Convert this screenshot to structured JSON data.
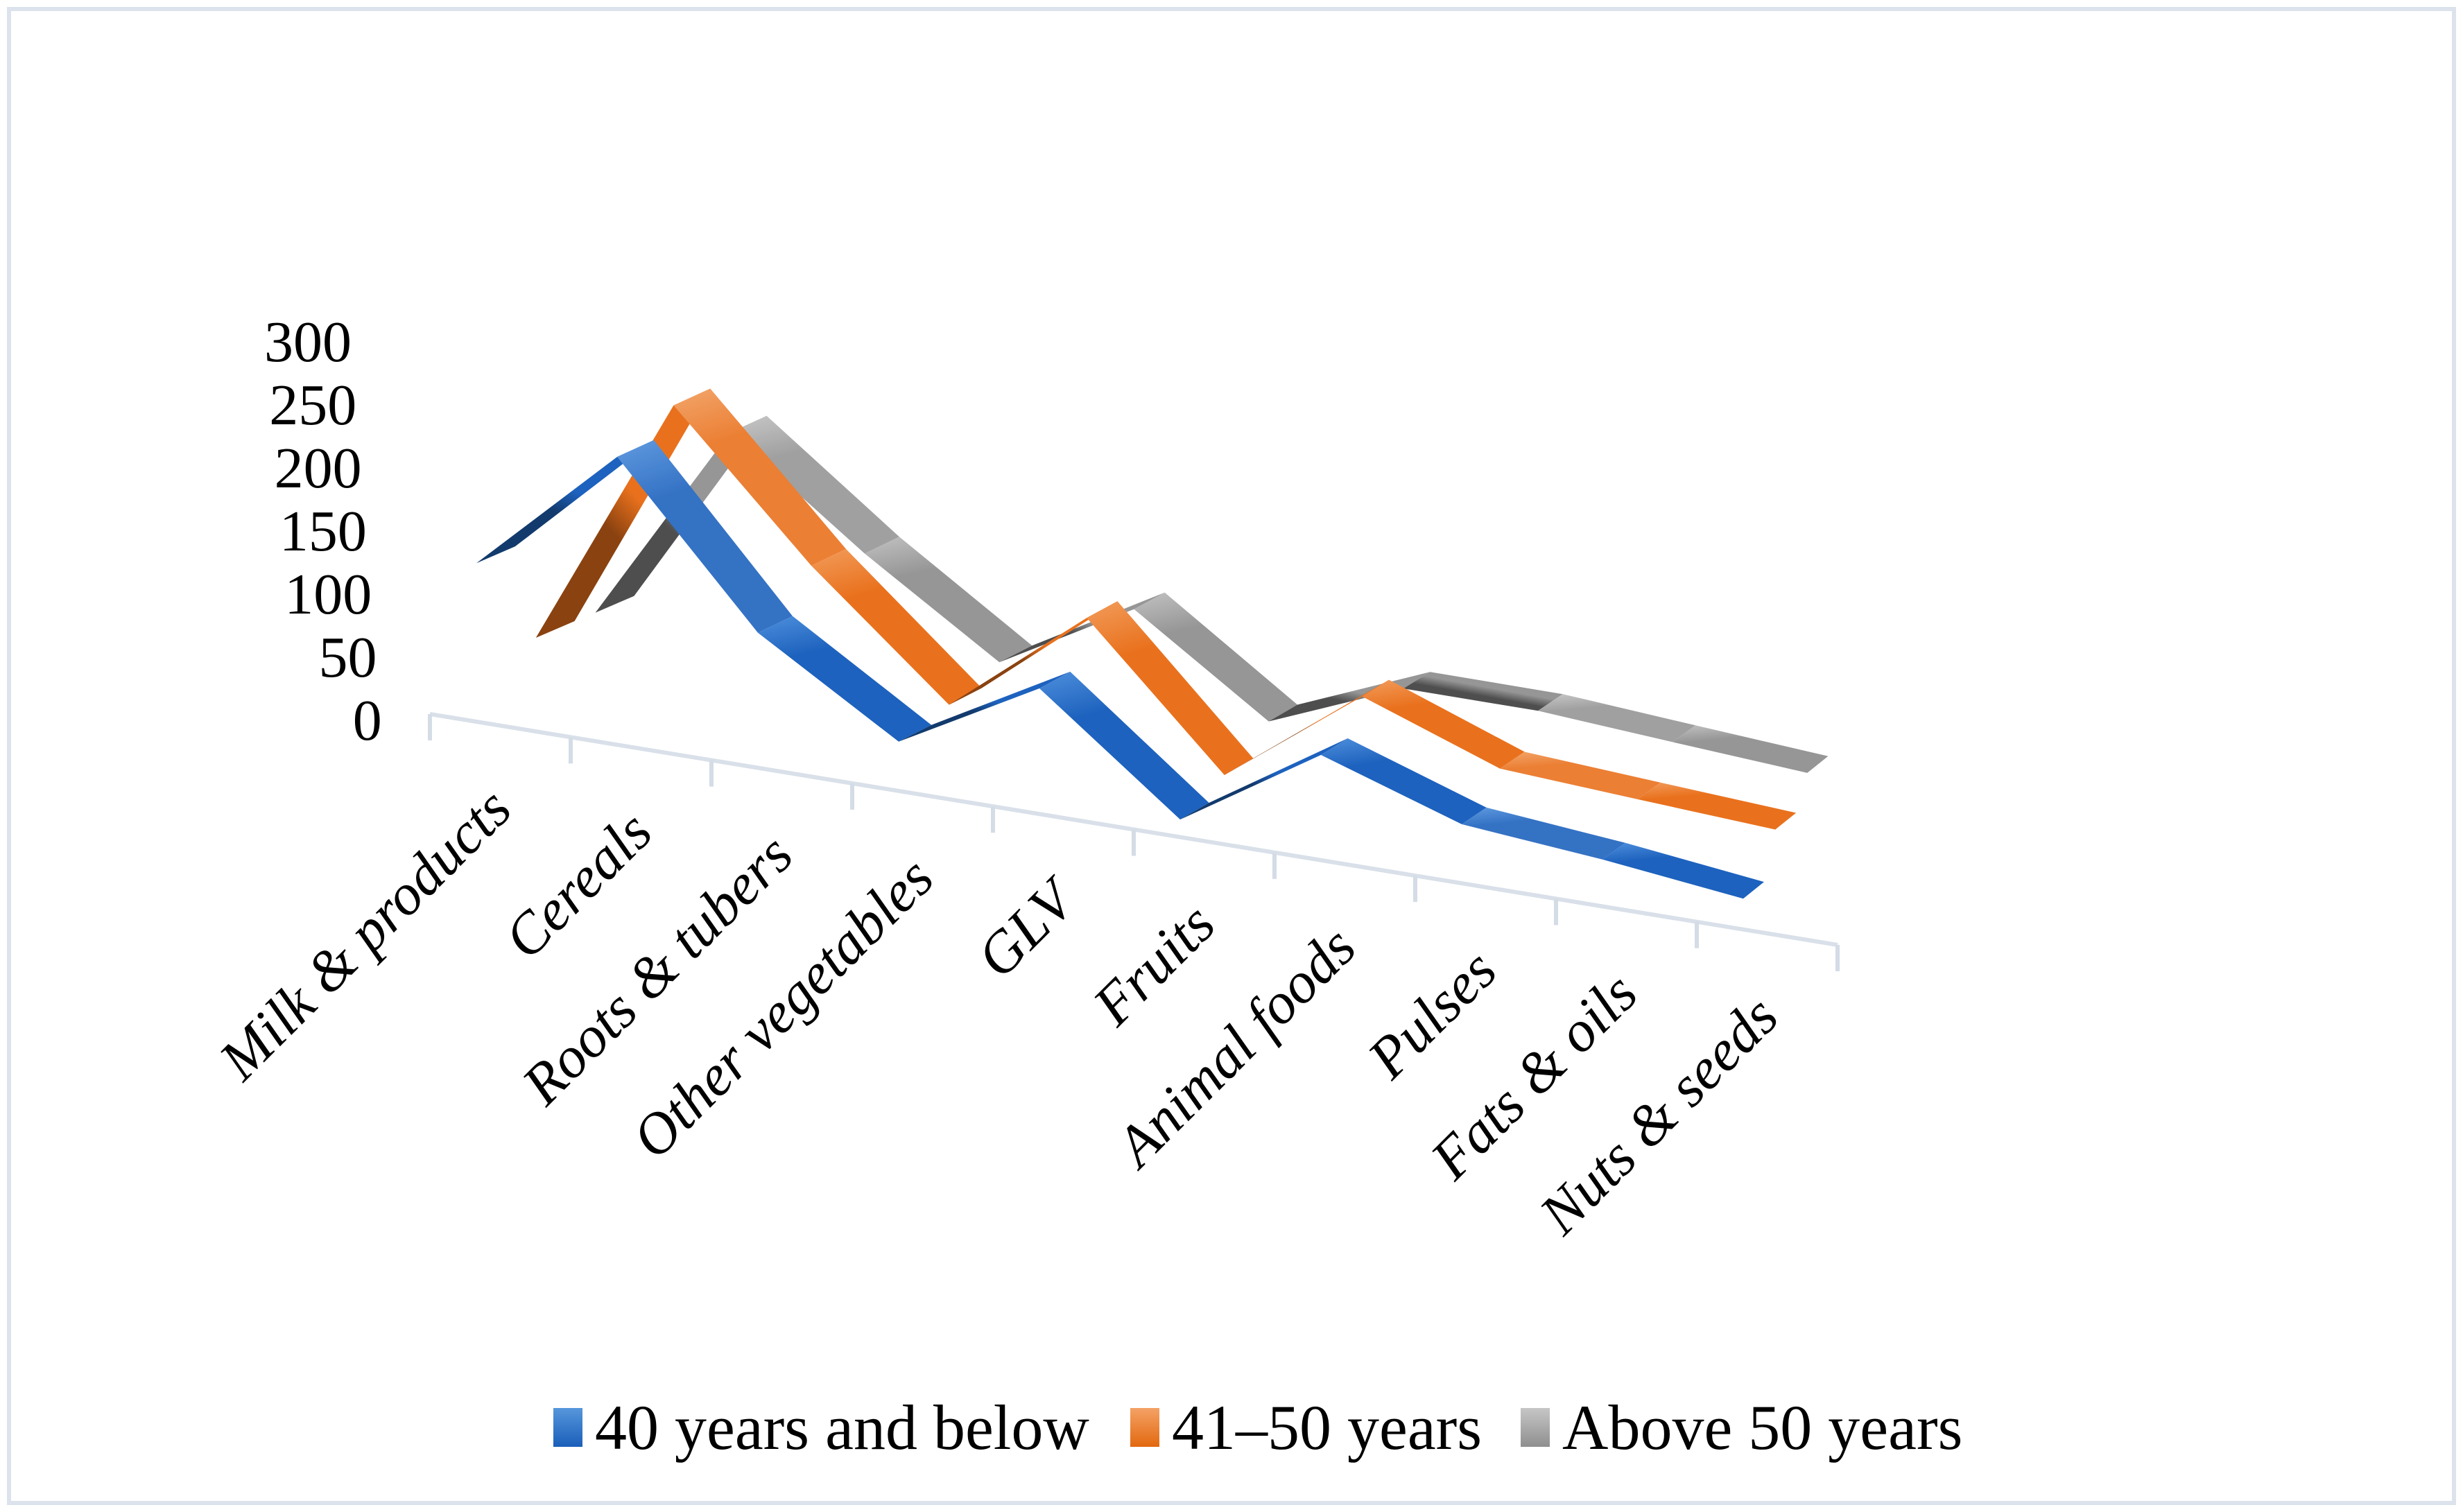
{
  "figure": {
    "background": "#ffffff",
    "border_color": "#dde3ec",
    "axis_line_color": "#d9e0e9",
    "tick_color": "#d4dce6"
  },
  "chart_data": {
    "type": "line",
    "subtype": "3d-ribbon",
    "title": "",
    "xlabel": "",
    "ylabel": "",
    "grid": false,
    "legend_position": "bottom",
    "categories": [
      "Milk & products",
      "Cereals",
      "Roots & tubers",
      "Other vegetables",
      "GLV",
      "Fruits",
      "Animal foods",
      "Pulses",
      "Fats & oils",
      "Nuts & seeds"
    ],
    "series": [
      {
        "name": "40 years and below",
        "color": "#1d62be",
        "color_dark": "#123a6d",
        "color_light": "#4e8fdc",
        "values": [
          105,
          205,
          95,
          30,
          95,
          5,
          85,
          45,
          35,
          20
        ]
      },
      {
        "name": "41–50 years",
        "color": "#e9711d",
        "color_dark": "#8a4210",
        "color_light": "#f29c5b",
        "values": [
          25,
          230,
          125,
          30,
          130,
          10,
          110,
          65,
          60,
          55
        ]
      },
      {
        "name": "Above 50 years",
        "color": "#969696",
        "color_dark": "#4e4e4e",
        "color_light": "#c2c2c2",
        "values": [
          15,
          190,
          110,
          35,
          110,
          25,
          85,
          90,
          85,
          80
        ]
      }
    ],
    "y_axis": {
      "min": 0,
      "max": 300,
      "step": 50,
      "tick_labels": [
        "300",
        "250",
        "200",
        "150",
        "100",
        "50",
        "0"
      ]
    },
    "legend": {
      "entries": [
        "40 years and below",
        "41–50 years",
        "Above 50 years"
      ]
    }
  }
}
